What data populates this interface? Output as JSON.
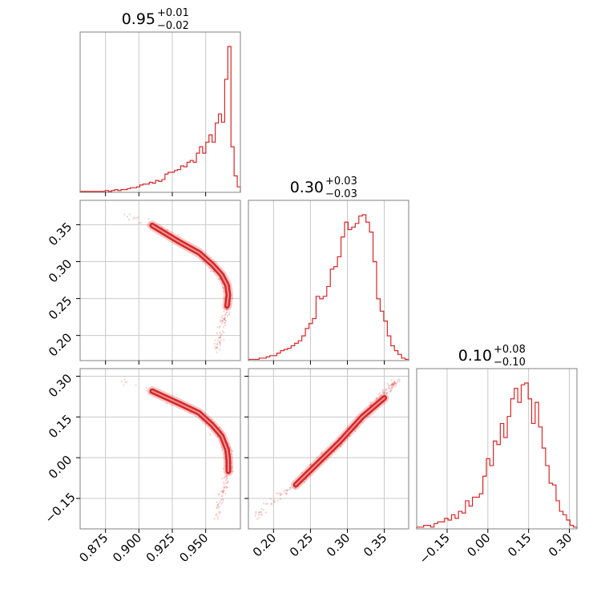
{
  "chart_data": {
    "type": "corner",
    "color": "#d62728",
    "grid": true,
    "parameters": [
      {
        "title": {
          "median": "0.95",
          "upper": "+0.01",
          "lower": "−0.02"
        },
        "range": [
          0.856,
          0.976
        ],
        "ticks": [
          0.875,
          0.9,
          0.925,
          0.95
        ],
        "tick_labels": [
          "0.875",
          "0.900",
          "0.925",
          "0.950"
        ],
        "hist": [
          1,
          1,
          1,
          1,
          1,
          1,
          1,
          1,
          2,
          1,
          2,
          3,
          2,
          3,
          3,
          4,
          5,
          5,
          6,
          8,
          9,
          9,
          11,
          10,
          13,
          12,
          14,
          20,
          22,
          22,
          24,
          25,
          29,
          28,
          33,
          35,
          33,
          43,
          50,
          43,
          55,
          63,
          55,
          76,
          86,
          77,
          124,
          160,
          50,
          18,
          6
        ]
      },
      {
        "title": {
          "median": "0.30",
          "upper": "+0.03",
          "lower": "−0.03"
        },
        "range": [
          0.166,
          0.383
        ],
        "ticks": [
          0.2,
          0.25,
          0.3,
          0.35
        ],
        "tick_labels": [
          "0.20",
          "0.25",
          "0.30",
          "0.35"
        ],
        "hist": [
          1,
          1,
          1,
          2,
          2,
          3,
          4,
          4,
          6,
          8,
          9,
          10,
          12,
          14,
          16,
          20,
          26,
          30,
          34,
          52,
          50,
          52,
          60,
          74,
          76,
          84,
          100,
          112,
          106,
          108,
          111,
          117,
          118,
          112,
          104,
          80,
          50,
          40,
          32,
          20,
          12,
          8,
          5,
          2,
          1
        ]
      },
      {
        "title": {
          "median": "0.10",
          "upper": "+0.08",
          "lower": "−0.10"
        },
        "range": [
          -0.262,
          0.328
        ],
        "ticks": [
          -0.15,
          0.0,
          0.15,
          0.3
        ],
        "tick_labels": [
          "−0.15",
          "0.00",
          "0.15",
          "0.30"
        ],
        "hist": [
          1,
          1,
          2,
          2,
          1,
          3,
          4,
          4,
          6,
          5,
          8,
          6,
          10,
          9,
          16,
          13,
          18,
          18,
          20,
          30,
          40,
          36,
          50,
          48,
          60,
          52,
          64,
          74,
          80,
          72,
          82,
          83,
          74,
          60,
          72,
          58,
          46,
          36,
          26,
          25,
          16,
          10,
          8,
          5,
          2,
          1
        ]
      }
    ]
  }
}
